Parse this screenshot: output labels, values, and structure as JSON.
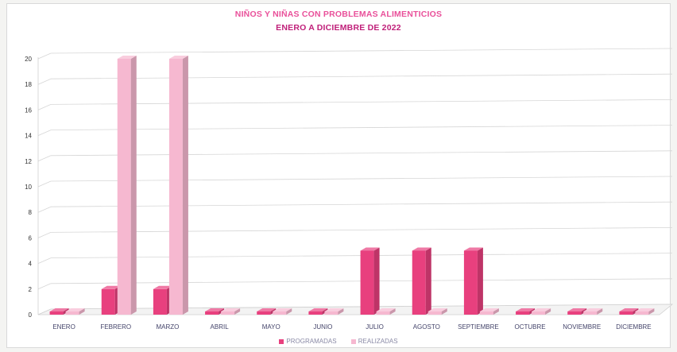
{
  "chart_data": {
    "type": "bar",
    "title": "NIÑOS Y NIÑAS CON PROBLEMAS ALIMENTICIOS",
    "subtitle": "ENERO A DICIEMBRE DE 2022",
    "categories": [
      "ENERO",
      "FEBRERO",
      "MARZO",
      "ABRIL",
      "MAYO",
      "JUNIO",
      "JULIO",
      "AGOSTO",
      "SEPTIEMBRE",
      "OCTUBRE",
      "NOVIEMBRE",
      "DICIEMBRE"
    ],
    "series": [
      {
        "name": "PROGRAMADAS",
        "values": [
          0,
          2,
          2,
          0,
          0,
          0,
          5,
          5,
          5,
          0,
          0,
          0
        ],
        "color": "#e8407e"
      },
      {
        "name": "REALIZADAS",
        "values": [
          0,
          20,
          20,
          0,
          0,
          0,
          0,
          0,
          0,
          0,
          0,
          0
        ],
        "color": "#f6b8d0"
      }
    ],
    "yticks": [
      "0",
      "2",
      "4",
      "6",
      "8",
      "10",
      "12",
      "14",
      "16",
      "18",
      "20"
    ],
    "ylim": [
      0,
      20
    ],
    "grid": true,
    "legend": "bottom",
    "style": "3d-column"
  }
}
